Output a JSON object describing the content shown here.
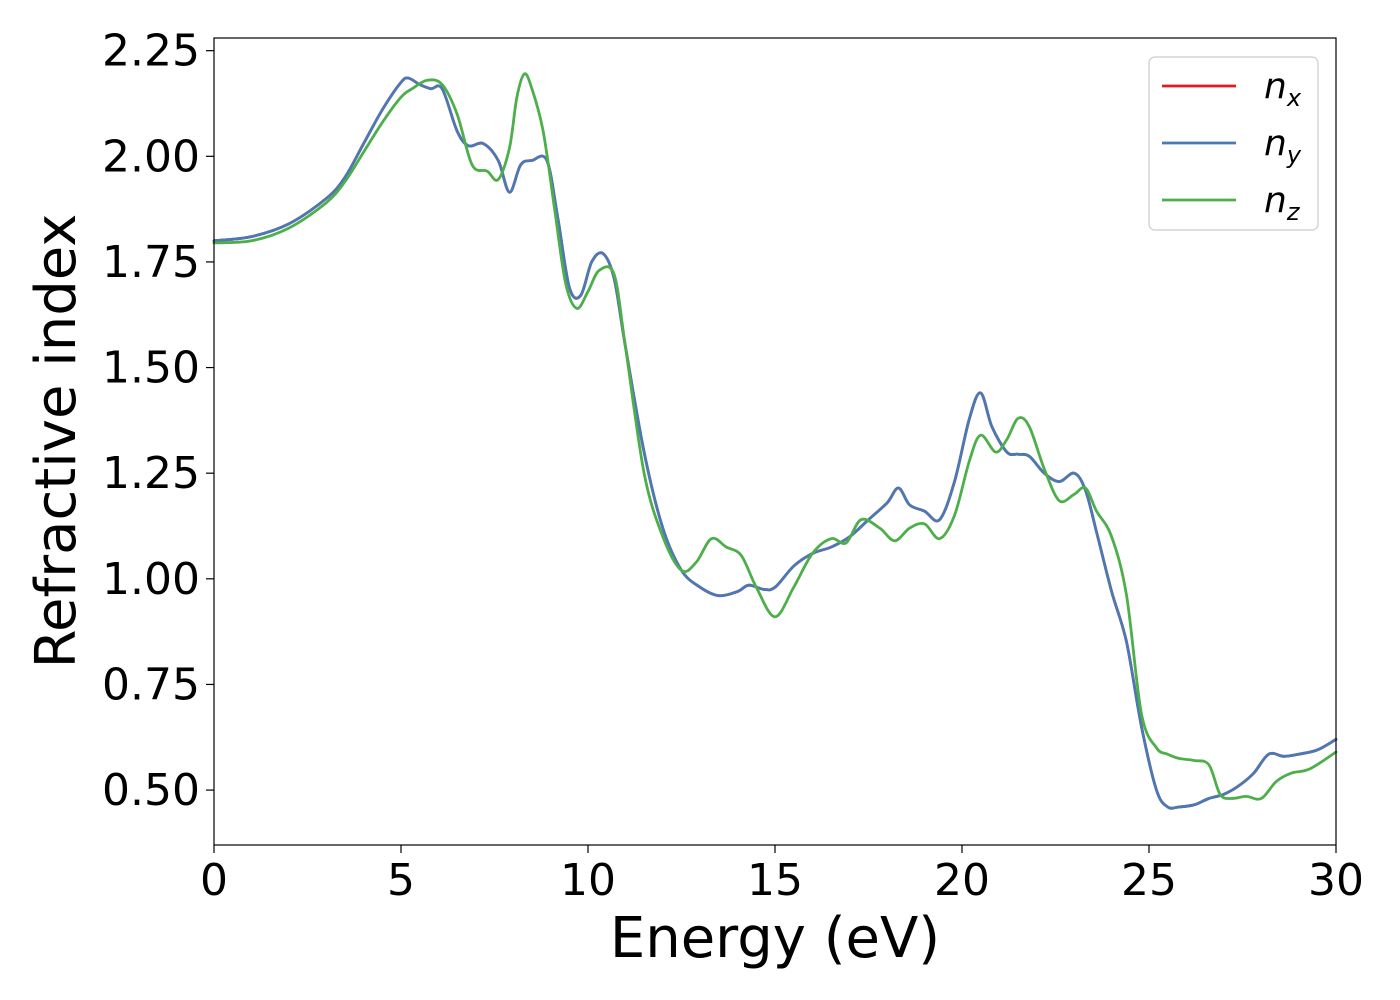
{
  "chart_data": {
    "type": "line",
    "xlabel": "Energy (eV)",
    "ylabel": "Refractive index",
    "xlim": [
      0,
      30
    ],
    "ylim": [
      0.37,
      2.28
    ],
    "xticks": [
      0,
      5,
      10,
      15,
      20,
      25,
      30
    ],
    "xtick_labels": [
      "0",
      "5",
      "10",
      "15",
      "20",
      "25",
      "30"
    ],
    "yticks": [
      0.5,
      0.75,
      1.0,
      1.25,
      1.5,
      1.75,
      2.0,
      2.25
    ],
    "ytick_labels": [
      "0.50",
      "0.75",
      "1.00",
      "1.25",
      "1.50",
      "1.75",
      "2.00",
      "2.25"
    ],
    "grid": false,
    "legend_position": "top-right",
    "series": [
      {
        "name": "n_x",
        "label_base": "n",
        "label_sub": "x",
        "color": "#e41a1c",
        "x": [
          0,
          1,
          2,
          3,
          3.5,
          4,
          4.5,
          5,
          5.2,
          5.5,
          5.8,
          6.1,
          6.5,
          6.8,
          7.2,
          7.6,
          7.9,
          8.2,
          8.5,
          8.9,
          9.2,
          9.5,
          9.8,
          10.1,
          10.4,
          10.7,
          11.0,
          11.5,
          12.0,
          12.5,
          13.0,
          13.5,
          14.0,
          14.3,
          14.7,
          15.0,
          15.5,
          16.0,
          16.5,
          17.0,
          17.5,
          18.0,
          18.3,
          18.6,
          19.0,
          19.4,
          19.8,
          20.2,
          20.5,
          20.8,
          21.2,
          21.5,
          21.8,
          22.2,
          22.6,
          23.0,
          23.3,
          23.6,
          24.0,
          24.4,
          24.8,
          25.2,
          25.5,
          25.8,
          26.2,
          26.6,
          27.0,
          27.4,
          27.8,
          28.2,
          28.6,
          29.0,
          29.5,
          30.0
        ],
        "values": [
          1.8,
          1.81,
          1.84,
          1.9,
          1.95,
          2.03,
          2.11,
          2.175,
          2.185,
          2.17,
          2.16,
          2.16,
          2.06,
          2.025,
          2.03,
          1.99,
          1.915,
          1.98,
          1.99,
          1.99,
          1.85,
          1.69,
          1.67,
          1.75,
          1.77,
          1.71,
          1.55,
          1.3,
          1.12,
          1.02,
          0.98,
          0.96,
          0.97,
          0.985,
          0.975,
          0.98,
          1.03,
          1.06,
          1.075,
          1.1,
          1.14,
          1.18,
          1.215,
          1.175,
          1.16,
          1.14,
          1.23,
          1.38,
          1.44,
          1.36,
          1.3,
          1.295,
          1.29,
          1.25,
          1.23,
          1.25,
          1.21,
          1.11,
          0.97,
          0.85,
          0.65,
          0.5,
          0.46,
          0.46,
          0.465,
          0.48,
          0.49,
          0.51,
          0.54,
          0.585,
          0.58,
          0.585,
          0.595,
          0.62
        ]
      },
      {
        "name": "n_y",
        "label_base": "n",
        "label_sub": "y",
        "color": "#4a7ab5",
        "x": [
          0,
          1,
          2,
          3,
          3.5,
          4,
          4.5,
          5,
          5.2,
          5.5,
          5.8,
          6.1,
          6.5,
          6.8,
          7.2,
          7.6,
          7.9,
          8.2,
          8.5,
          8.9,
          9.2,
          9.5,
          9.8,
          10.1,
          10.4,
          10.7,
          11.0,
          11.5,
          12.0,
          12.5,
          13.0,
          13.5,
          14.0,
          14.3,
          14.7,
          15.0,
          15.5,
          16.0,
          16.5,
          17.0,
          17.5,
          18.0,
          18.3,
          18.6,
          19.0,
          19.4,
          19.8,
          20.2,
          20.5,
          20.8,
          21.2,
          21.5,
          21.8,
          22.2,
          22.6,
          23.0,
          23.3,
          23.6,
          24.0,
          24.4,
          24.8,
          25.2,
          25.5,
          25.8,
          26.2,
          26.6,
          27.0,
          27.4,
          27.8,
          28.2,
          28.6,
          29.0,
          29.5,
          30.0
        ],
        "values": [
          1.8,
          1.81,
          1.84,
          1.9,
          1.95,
          2.03,
          2.11,
          2.175,
          2.185,
          2.17,
          2.16,
          2.16,
          2.06,
          2.025,
          2.03,
          1.99,
          1.915,
          1.98,
          1.99,
          1.99,
          1.85,
          1.69,
          1.67,
          1.75,
          1.77,
          1.71,
          1.55,
          1.3,
          1.12,
          1.02,
          0.98,
          0.96,
          0.97,
          0.985,
          0.975,
          0.98,
          1.03,
          1.06,
          1.075,
          1.1,
          1.14,
          1.18,
          1.215,
          1.175,
          1.16,
          1.14,
          1.23,
          1.38,
          1.44,
          1.36,
          1.3,
          1.295,
          1.29,
          1.25,
          1.23,
          1.25,
          1.21,
          1.11,
          0.97,
          0.85,
          0.65,
          0.5,
          0.46,
          0.46,
          0.465,
          0.48,
          0.49,
          0.51,
          0.54,
          0.585,
          0.58,
          0.585,
          0.595,
          0.62
        ]
      },
      {
        "name": "n_z",
        "label_base": "n",
        "label_sub": "z",
        "color": "#4daf4a",
        "x": [
          0,
          1,
          2,
          3,
          3.5,
          4,
          4.5,
          5,
          5.3,
          5.7,
          6.1,
          6.5,
          6.9,
          7.3,
          7.6,
          7.9,
          8.1,
          8.3,
          8.5,
          8.8,
          9.1,
          9.4,
          9.7,
          10.0,
          10.3,
          10.7,
          11.0,
          11.5,
          12.0,
          12.5,
          12.9,
          13.3,
          13.7,
          14.1,
          14.5,
          15.0,
          15.5,
          16.0,
          16.5,
          16.9,
          17.3,
          17.8,
          18.2,
          18.6,
          19.0,
          19.4,
          19.8,
          20.2,
          20.5,
          20.9,
          21.2,
          21.5,
          21.8,
          22.2,
          22.6,
          23.0,
          23.3,
          23.6,
          24.0,
          24.4,
          24.8,
          25.2,
          25.5,
          25.8,
          26.2,
          26.6,
          26.9,
          27.2,
          27.6,
          28.0,
          28.4,
          28.8,
          29.3,
          30.0
        ],
        "values": [
          1.795,
          1.8,
          1.83,
          1.89,
          1.94,
          2.01,
          2.08,
          2.14,
          2.16,
          2.18,
          2.17,
          2.1,
          1.98,
          1.965,
          1.945,
          2.02,
          2.14,
          2.195,
          2.16,
          2.06,
          1.88,
          1.7,
          1.64,
          1.68,
          1.73,
          1.72,
          1.55,
          1.25,
          1.1,
          1.02,
          1.04,
          1.095,
          1.075,
          1.055,
          0.98,
          0.91,
          0.98,
          1.06,
          1.095,
          1.085,
          1.14,
          1.12,
          1.09,
          1.12,
          1.13,
          1.095,
          1.15,
          1.28,
          1.34,
          1.3,
          1.33,
          1.38,
          1.36,
          1.26,
          1.185,
          1.2,
          1.215,
          1.16,
          1.1,
          0.96,
          0.68,
          0.6,
          0.585,
          0.575,
          0.57,
          0.56,
          0.49,
          0.48,
          0.485,
          0.48,
          0.52,
          0.54,
          0.55,
          0.59
        ]
      }
    ]
  }
}
